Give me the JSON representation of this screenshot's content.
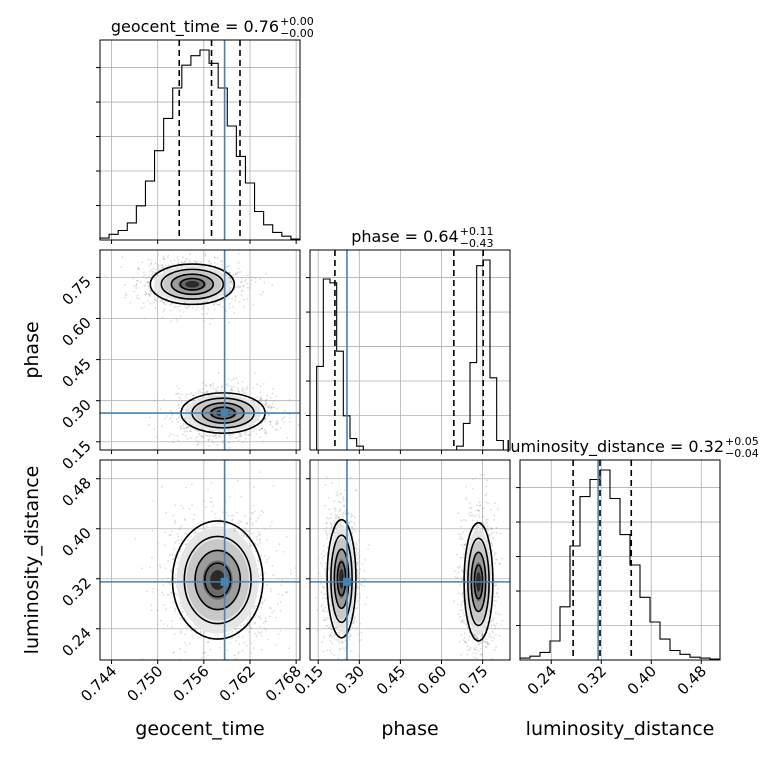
{
  "chart_data": {
    "type": "corner",
    "params": [
      "geocent_time",
      "phase",
      "luminosity_distance"
    ],
    "truths": {
      "geocent_time": 0.7587,
      "phase": 0.255,
      "luminosity_distance": 0.315
    },
    "titles": [
      {
        "name": "geocent_time",
        "median": "0.76",
        "plus": "+0.00",
        "minus": "−0.00"
      },
      {
        "name": "phase",
        "median": "0.64",
        "plus": "+0.11",
        "minus": "−0.43"
      },
      {
        "name": "luminosity_distance",
        "median": "0.32",
        "plus": "+0.05",
        "minus": "−0.04"
      }
    ],
    "axes": {
      "geocent_time": {
        "range": [
          0.7425,
          0.7685
        ],
        "ticks": [
          "0.744",
          "0.750",
          "0.756",
          "0.762",
          "0.768"
        ],
        "quantiles": [
          0.7528,
          0.757,
          0.7607
        ]
      },
      "phase": {
        "range": [
          0.12,
          0.85
        ],
        "ticks": [
          "0.15",
          "0.30",
          "0.45",
          "0.60",
          "0.75"
        ],
        "quantiles": [
          0.211,
          0.645,
          0.752
        ]
      },
      "luminosity_distance": {
        "range": [
          0.19,
          0.51
        ],
        "ticks": [
          "0.24",
          "0.32",
          "0.40",
          "0.48"
        ],
        "quantiles": [
          0.275,
          0.318,
          0.368
        ]
      }
    },
    "hist_geocent_time": [
      0.01,
      0.03,
      0.05,
      0.09,
      0.18,
      0.31,
      0.47,
      0.64,
      0.8,
      0.92,
      0.97,
      1.0,
      0.93,
      0.8,
      0.6,
      0.44,
      0.3,
      0.15,
      0.08,
      0.04,
      0.02,
      0.005
    ],
    "hist_phase": [
      0,
      0.44,
      0.9,
      0.88,
      0.52,
      0.18,
      0.06,
      0.02,
      0,
      0,
      0,
      0,
      0,
      0,
      0,
      0,
      0,
      0,
      0,
      0,
      0,
      0,
      0.02,
      0.14,
      0.46,
      0.97,
      1.0,
      0.38,
      0.05,
      0
    ],
    "hist_luminosity_distance": [
      0.01,
      0.02,
      0.04,
      0.1,
      0.28,
      0.6,
      0.86,
      0.95,
      1.0,
      0.85,
      0.66,
      0.5,
      0.33,
      0.2,
      0.11,
      0.05,
      0.03,
      0.015,
      0.01,
      0.005
    ],
    "blobs": {
      "time_phase": [
        {
          "mx": 0.7545,
          "my": 0.725,
          "sx": 0.0026,
          "sy": 0.035
        },
        {
          "mx": 0.7585,
          "my": 0.255,
          "sx": 0.0026,
          "sy": 0.035
        }
      ],
      "time_dist": [
        {
          "mx": 0.7578,
          "my": 0.318,
          "sx": 0.0028,
          "sy": 0.045
        }
      ],
      "phase_dist": [
        {
          "mx": 0.235,
          "my": 0.32,
          "sx": 0.025,
          "sy": 0.045
        },
        {
          "mx": 0.735,
          "my": 0.315,
          "sx": 0.025,
          "sy": 0.045
        }
      ]
    },
    "grid": true,
    "colors": {
      "truth": "#4682b4",
      "hist": "#000000",
      "samples": "#9e9e9e"
    }
  }
}
